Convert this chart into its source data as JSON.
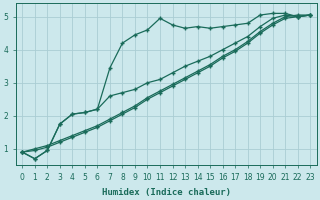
{
  "background_color": "#cce8ec",
  "grid_color": "#aacdd4",
  "line_color": "#1a6b5a",
  "xlabel": "Humidex (Indice chaleur)",
  "xlim": [
    -0.5,
    23.5
  ],
  "ylim": [
    0.5,
    5.4
  ],
  "yticks": [
    1,
    2,
    3,
    4,
    5
  ],
  "xticks": [
    0,
    1,
    2,
    3,
    4,
    5,
    6,
    7,
    8,
    9,
    10,
    11,
    12,
    13,
    14,
    15,
    16,
    17,
    18,
    19,
    20,
    21,
    22,
    23
  ],
  "series": [
    {
      "x": [
        0,
        1,
        2,
        3,
        4,
        5,
        6,
        7,
        8,
        9,
        10,
        11,
        12,
        13,
        14,
        15,
        16,
        17,
        18,
        19,
        20,
        21,
        22,
        23
      ],
      "y": [
        0.9,
        0.7,
        0.95,
        1.75,
        2.05,
        2.1,
        2.2,
        3.45,
        4.2,
        4.45,
        4.6,
        4.95,
        4.75,
        4.65,
        4.7,
        4.65,
        4.7,
        4.75,
        4.8,
        5.05,
        5.1,
        5.1,
        5.0,
        5.05
      ]
    },
    {
      "x": [
        0,
        1,
        2,
        3,
        4,
        5,
        6,
        7,
        8,
        9,
        10,
        11,
        12,
        13,
        14,
        15,
        16,
        17,
        18,
        19,
        20,
        21,
        22,
        23
      ],
      "y": [
        0.9,
        0.7,
        0.95,
        1.75,
        2.05,
        2.1,
        2.2,
        2.6,
        2.7,
        2.8,
        3.0,
        3.1,
        3.3,
        3.5,
        3.65,
        3.8,
        4.0,
        4.2,
        4.4,
        4.7,
        4.95,
        5.05,
        5.0,
        5.05
      ]
    },
    {
      "x": [
        0,
        1,
        2,
        3,
        4,
        5,
        6,
        7,
        8,
        9,
        10,
        11,
        12,
        13,
        14,
        15,
        16,
        17,
        18,
        19,
        20,
        21,
        22,
        23
      ],
      "y": [
        0.9,
        1.0,
        1.1,
        1.25,
        1.4,
        1.55,
        1.7,
        1.9,
        2.1,
        2.3,
        2.55,
        2.75,
        2.95,
        3.15,
        3.35,
        3.55,
        3.8,
        4.0,
        4.25,
        4.55,
        4.8,
        5.0,
        5.05,
        5.05
      ]
    },
    {
      "x": [
        0,
        1,
        2,
        3,
        4,
        5,
        6,
        7,
        8,
        9,
        10,
        11,
        12,
        13,
        14,
        15,
        16,
        17,
        18,
        19,
        20,
        21,
        22,
        23
      ],
      "y": [
        0.9,
        0.95,
        1.05,
        1.2,
        1.35,
        1.5,
        1.65,
        1.85,
        2.05,
        2.25,
        2.5,
        2.7,
        2.9,
        3.1,
        3.3,
        3.5,
        3.75,
        3.95,
        4.2,
        4.5,
        4.75,
        4.95,
        5.0,
        5.05
      ]
    }
  ]
}
